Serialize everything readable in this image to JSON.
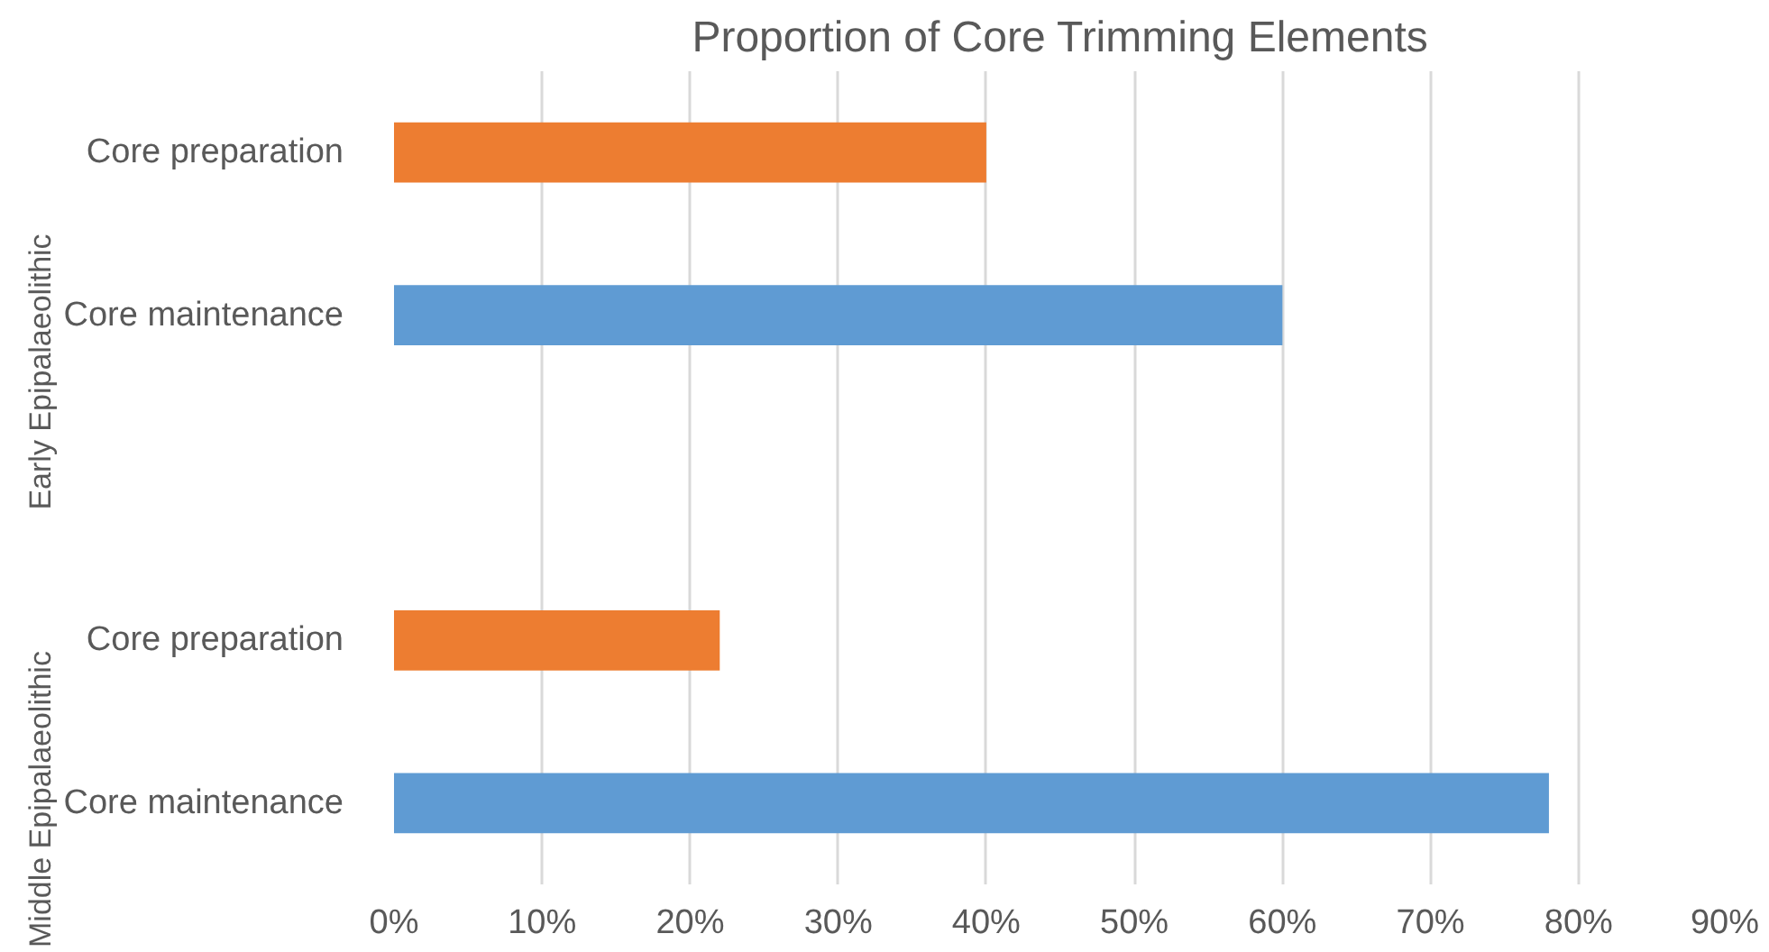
{
  "chart_data": {
    "type": "bar",
    "orientation": "horizontal",
    "title": "Proportion of Core Trimming Elements",
    "categories": [
      "Core preparation",
      "Core maintenance",
      null,
      "Core preparation",
      "Core maintenance"
    ],
    "values": [
      40,
      60,
      null,
      22,
      78
    ],
    "colors": [
      "#ed7d31",
      "#5f9bd3",
      null,
      "#ed7d31",
      "#5f9bd3"
    ],
    "xlim": [
      0,
      90
    ],
    "xticks": [
      {
        "value": 0,
        "label": "0%"
      },
      {
        "value": 10,
        "label": "10%"
      },
      {
        "value": 20,
        "label": "20%"
      },
      {
        "value": 30,
        "label": "30%"
      },
      {
        "value": 40,
        "label": "40%"
      },
      {
        "value": 50,
        "label": "50%"
      },
      {
        "value": 60,
        "label": "60%"
      },
      {
        "value": 70,
        "label": "70%"
      },
      {
        "value": 80,
        "label": "80%"
      },
      {
        "value": 90,
        "label": "90%"
      }
    ],
    "annotations": [
      "Early Epipalaeolithic",
      "Middle Epipalaeolithic"
    ],
    "grid": "x"
  }
}
